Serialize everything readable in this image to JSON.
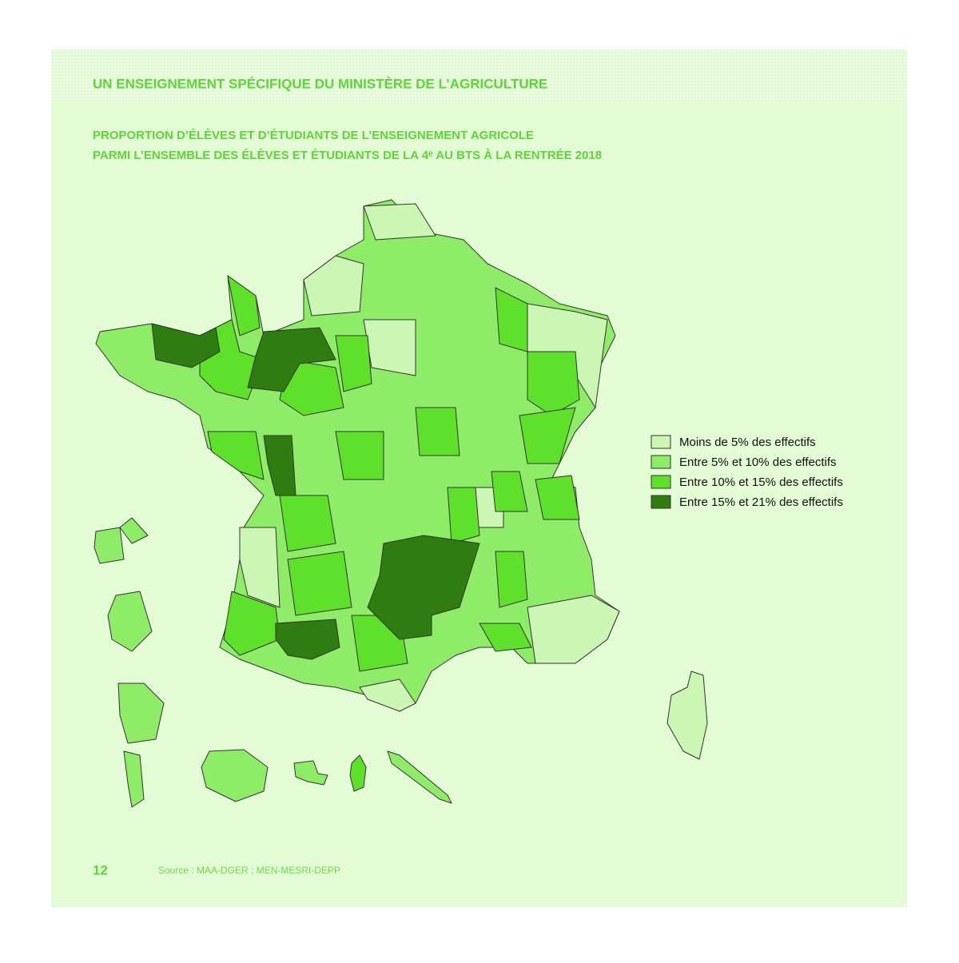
{
  "header": {
    "title": "UN ENSEIGNEMENT SPÉCIFIQUE DU MINISTÈRE DE L’AGRICULTURE"
  },
  "map": {
    "title_lines": [
      "PROPORTION D’ÉLÈVES ET D’ÉTUDIANTS DE L’ENSEIGNEMENT AGRICOLE",
      "PARMI L’ENSEMBLE DES ÉLÈVES ET ÉTUDIANTS DE LA 4ᵉ AU BTS À LA RENTRÉE 2018"
    ],
    "legend": [
      {
        "label": "Moins de 5% des effectifs",
        "color": "#cbf6b4"
      },
      {
        "label": "Entre 5% et 10% des effectifs",
        "color": "#8fec68"
      },
      {
        "label": "Entre 10% et 15% des effectifs",
        "color": "#5fe02b"
      },
      {
        "label": "Entre 15% et 21% des effectifs",
        "color": "#2f7c10"
      }
    ]
  },
  "footer": {
    "page": "12",
    "source": "Source : MAA-DGER ; MEN-MESRI-DEPP"
  }
}
